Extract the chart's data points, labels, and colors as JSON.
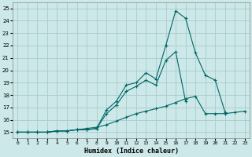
{
  "title": "",
  "xlabel": "Humidex (Indice chaleur)",
  "bg_color": "#cce8e8",
  "grid_color": "#aacccc",
  "line_color": "#006666",
  "xlim": [
    -0.5,
    23.5
  ],
  "ylim": [
    14.5,
    25.5
  ],
  "xticks": [
    0,
    1,
    2,
    3,
    4,
    5,
    6,
    7,
    8,
    9,
    10,
    11,
    12,
    13,
    14,
    15,
    16,
    17,
    18,
    19,
    20,
    21,
    22,
    23
  ],
  "yticks": [
    15,
    16,
    17,
    18,
    19,
    20,
    21,
    22,
    23,
    24,
    25
  ],
  "series": [
    {
      "x": [
        0,
        1,
        2,
        3,
        4,
        5,
        6,
        7,
        8,
        9,
        10,
        11,
        12,
        13,
        14,
        15,
        16,
        17,
        18,
        19,
        20,
        21
      ],
      "y": [
        15,
        15,
        15,
        15,
        15.1,
        15.1,
        15.2,
        15.2,
        15.3,
        16.8,
        17.5,
        18.8,
        19.0,
        19.8,
        19.3,
        22.0,
        24.8,
        24.2,
        21.4,
        19.6,
        19.2,
        16.6
      ]
    },
    {
      "x": [
        0,
        1,
        2,
        3,
        4,
        5,
        6,
        7,
        8,
        9,
        10,
        11,
        12,
        13,
        14,
        15,
        16,
        17,
        18,
        19,
        20,
        21,
        22,
        23
      ],
      "y": [
        15,
        15,
        15,
        15,
        15.1,
        15.1,
        15.2,
        15.2,
        15.3,
        16.5,
        17.2,
        18.3,
        18.7,
        19.2,
        18.8,
        20.8,
        21.5,
        17.5,
        null,
        null,
        null,
        null,
        null,
        null
      ]
    },
    {
      "x": [
        0,
        1,
        2,
        3,
        4,
        5,
        6,
        7,
        8,
        9,
        10,
        11,
        12,
        13,
        14,
        15,
        16,
        17,
        18,
        19,
        20,
        21,
        22,
        23
      ],
      "y": [
        15,
        15,
        15,
        15,
        15.1,
        15.1,
        15.2,
        15.3,
        15.4,
        15.6,
        15.9,
        16.2,
        16.5,
        16.7,
        16.9,
        17.1,
        17.4,
        17.7,
        17.9,
        16.5,
        16.5,
        16.5,
        16.6,
        16.7
      ]
    }
  ]
}
